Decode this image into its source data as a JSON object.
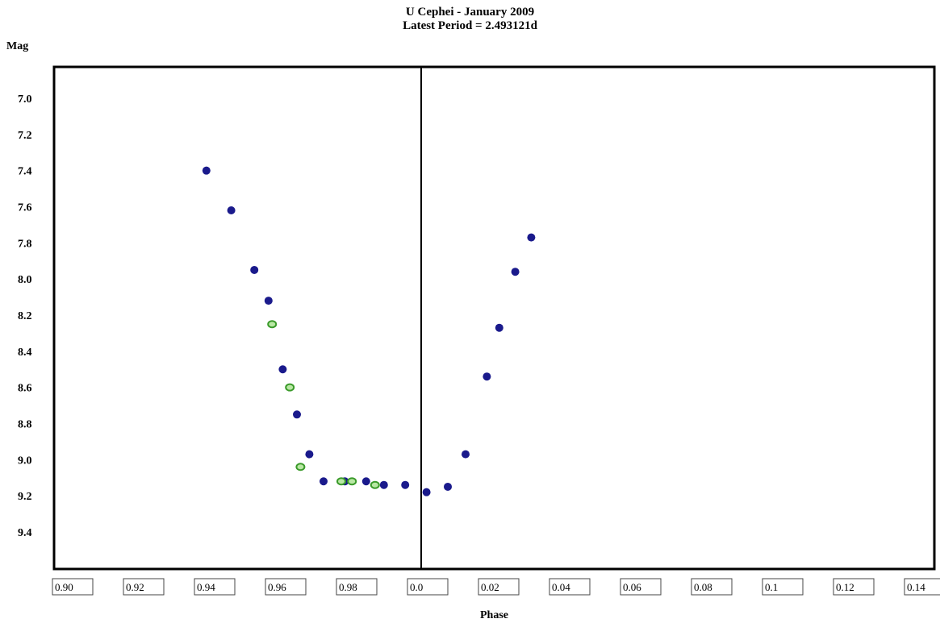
{
  "chart_data": {
    "type": "scatter",
    "title": "U Cephei - January 2009",
    "subtitle": "Latest Period =  2.493121d",
    "ylabel": "Mag",
    "xlabel": "Phase",
    "y_inverted": true,
    "ylim": [
      9.65,
      6.85
    ],
    "xlim": [
      0.895,
      1.14
    ],
    "phase_zero": 1.0,
    "y_ticks": [
      "7.0",
      "7.2",
      "7.4",
      "7.6",
      "7.8",
      "8.0",
      "8.2",
      "8.4",
      "8.6",
      "8.8",
      "9.0",
      "9.2",
      "9.4"
    ],
    "x_ticks": [
      "0.90",
      "0.92",
      "0.94",
      "0.96",
      "0.98",
      "0.0",
      "0.02",
      "0.04",
      "0.06",
      "0.08",
      "0.1",
      "0.12",
      "0.14"
    ],
    "series": [
      {
        "color": "#1a1a8c",
        "x": [
          0.9395,
          0.9465,
          0.953,
          0.957,
          0.961,
          0.965,
          0.9685,
          0.9725,
          0.9785,
          0.9845,
          0.9895,
          0.9955,
          1.0015,
          1.0075,
          1.0125,
          1.0185,
          1.022,
          1.0265,
          1.031
        ],
        "y": [
          7.4,
          7.62,
          7.95,
          8.12,
          8.5,
          8.75,
          8.97,
          9.12,
          9.12,
          9.12,
          9.14,
          9.14,
          9.18,
          9.15,
          8.97,
          8.54,
          8.27,
          7.96,
          7.77
        ]
      },
      {
        "color": "#3a9a2a",
        "x": [
          0.958,
          0.963,
          0.966,
          0.9775,
          0.9805,
          0.987
        ],
        "y": [
          8.25,
          8.6,
          9.04,
          9.12,
          9.12,
          9.14
        ]
      }
    ]
  }
}
